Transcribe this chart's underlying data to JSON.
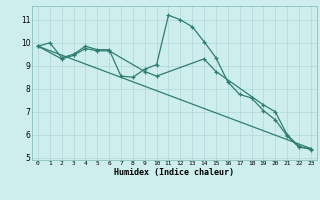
{
  "xlabel": "Humidex (Indice chaleur)",
  "bg_color": "#ceeeed",
  "grid_color": "#aed8d5",
  "line_color": "#2e7d6e",
  "xlim": [
    -0.5,
    23.5
  ],
  "ylim": [
    4.9,
    11.6
  ],
  "yticks": [
    5,
    6,
    7,
    8,
    9,
    10,
    11
  ],
  "xticks": [
    0,
    1,
    2,
    3,
    4,
    5,
    6,
    7,
    8,
    9,
    10,
    11,
    12,
    13,
    14,
    15,
    16,
    17,
    18,
    19,
    20,
    21,
    22,
    23
  ],
  "line1_x": [
    0,
    1,
    2,
    3,
    4,
    5,
    6,
    7,
    8,
    9,
    10,
    11,
    12,
    13,
    14,
    15,
    16,
    17,
    18,
    19,
    20,
    21,
    22,
    23
  ],
  "line1_y": [
    9.85,
    10.0,
    9.35,
    9.5,
    9.85,
    9.7,
    9.7,
    8.55,
    8.5,
    8.85,
    9.05,
    11.2,
    11.0,
    10.7,
    10.05,
    9.35,
    8.3,
    7.75,
    7.6,
    7.05,
    6.65,
    5.95,
    5.45,
    5.4
  ],
  "line2_x": [
    0,
    2,
    3,
    4,
    5,
    6,
    9,
    10,
    14,
    15,
    19,
    20,
    21,
    22,
    23
  ],
  "line2_y": [
    9.85,
    9.3,
    9.45,
    9.75,
    9.65,
    9.65,
    8.75,
    8.55,
    9.3,
    8.75,
    7.3,
    7.0,
    6.0,
    5.5,
    5.35
  ],
  "line3_x": [
    0,
    23
  ],
  "line3_y": [
    9.85,
    5.4
  ]
}
